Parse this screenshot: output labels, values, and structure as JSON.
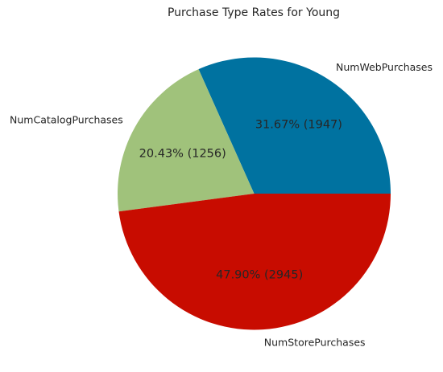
{
  "chart_data": {
    "type": "pie",
    "title": "Purchase Type Rates for Young",
    "slices": [
      {
        "label": "NumWebPurchases",
        "value": 1947,
        "percent": "31.67%",
        "color": "#0072a0"
      },
      {
        "label": "NumCatalogPurchases",
        "value": 1256,
        "percent": "20.43%",
        "color": "#a0c27b"
      },
      {
        "label": "NumStorePurchases",
        "value": 2945,
        "percent": "47.90%",
        "color": "#c80c00"
      }
    ],
    "start_angle": 0,
    "direction": "counterclockwise"
  }
}
